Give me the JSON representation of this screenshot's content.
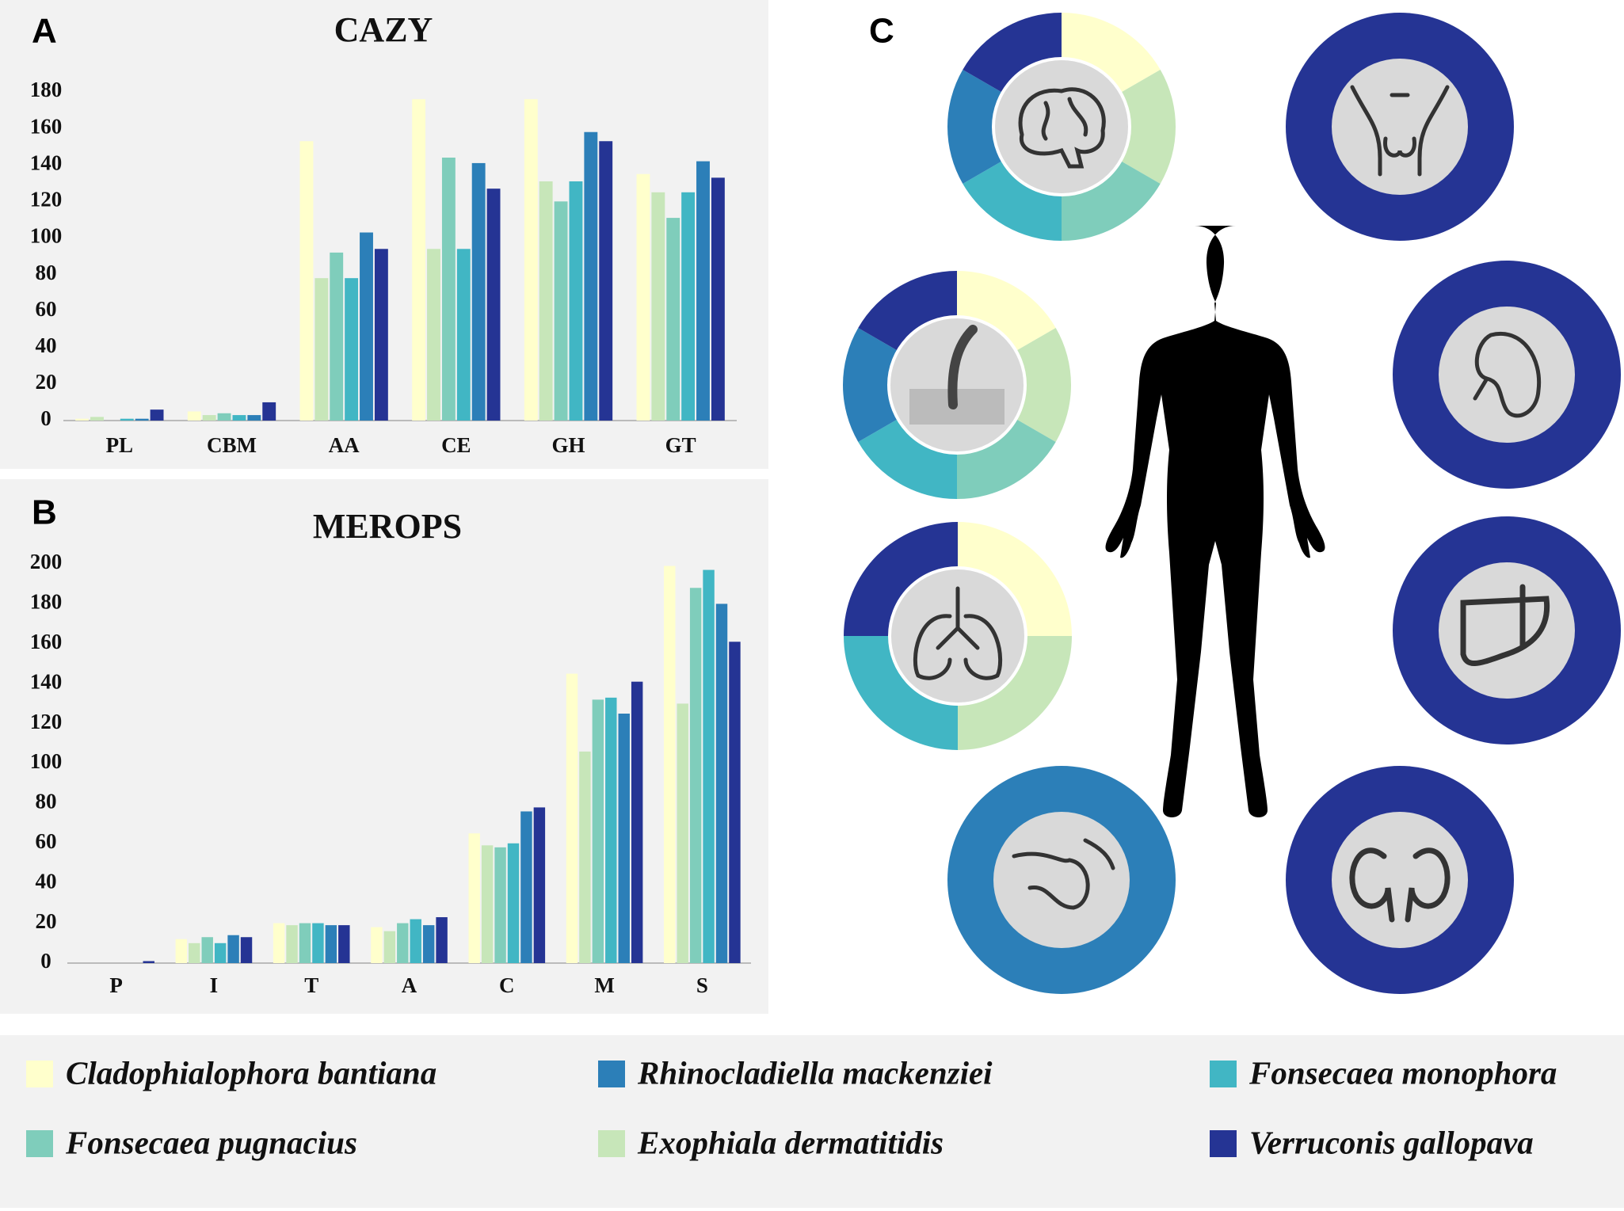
{
  "panel_labels": [
    "A",
    "B",
    "C"
  ],
  "chart_data": [
    {
      "type": "bar",
      "title": "CAZY",
      "categories": [
        "PL",
        "CBM",
        "AA",
        "CE",
        "GH",
        "GT"
      ],
      "series": [
        {
          "name": "Cladophialophora bantiana",
          "color": "#ffffcc",
          "values": [
            1,
            5,
            153,
            176,
            176,
            135
          ]
        },
        {
          "name": "Exophiala dermatitidis",
          "color": "#c7e6b9",
          "values": [
            2,
            3,
            78,
            94,
            131,
            125
          ]
        },
        {
          "name": "Fonsecaea pugnacius",
          "color": "#7fcdbb",
          "values": [
            0,
            4,
            92,
            144,
            120,
            111
          ]
        },
        {
          "name": "Fonsecaea monophora",
          "color": "#41b6c4",
          "values": [
            1,
            3,
            78,
            94,
            131,
            125
          ]
        },
        {
          "name": "Rhinocladiella mackenziei",
          "color": "#2c7fb8",
          "values": [
            1,
            3,
            103,
            141,
            158,
            142
          ]
        },
        {
          "name": "Verruconis gallopava",
          "color": "#253494",
          "values": [
            6,
            10,
            94,
            127,
            153,
            133
          ]
        }
      ],
      "ylim": [
        0,
        180
      ],
      "yticks": [
        0,
        20,
        40,
        60,
        80,
        100,
        120,
        140,
        160,
        180
      ]
    },
    {
      "type": "bar",
      "title": "MEROPS",
      "categories": [
        "P",
        "I",
        "T",
        "A",
        "C",
        "M",
        "S"
      ],
      "series": [
        {
          "color": "#ffffcc",
          "values": [
            0,
            12,
            20,
            18,
            65,
            145,
            199
          ]
        },
        {
          "color": "#c7e6b9",
          "values": [
            0,
            10,
            19,
            16,
            59,
            106,
            130
          ]
        },
        {
          "color": "#7fcdbb",
          "values": [
            0,
            13,
            20,
            20,
            58,
            132,
            188
          ]
        },
        {
          "color": "#41b6c4",
          "values": [
            0,
            10,
            20,
            22,
            60,
            133,
            197
          ]
        },
        {
          "color": "#2c7fb8",
          "values": [
            0,
            14,
            19,
            19,
            76,
            125,
            180
          ]
        },
        {
          "color": "#253494",
          "values": [
            1,
            13,
            19,
            23,
            78,
            141,
            161
          ]
        }
      ],
      "ylim": [
        0,
        200
      ],
      "yticks": [
        0,
        20,
        40,
        60,
        80,
        100,
        120,
        140,
        160,
        180,
        200
      ]
    }
  ]
}
